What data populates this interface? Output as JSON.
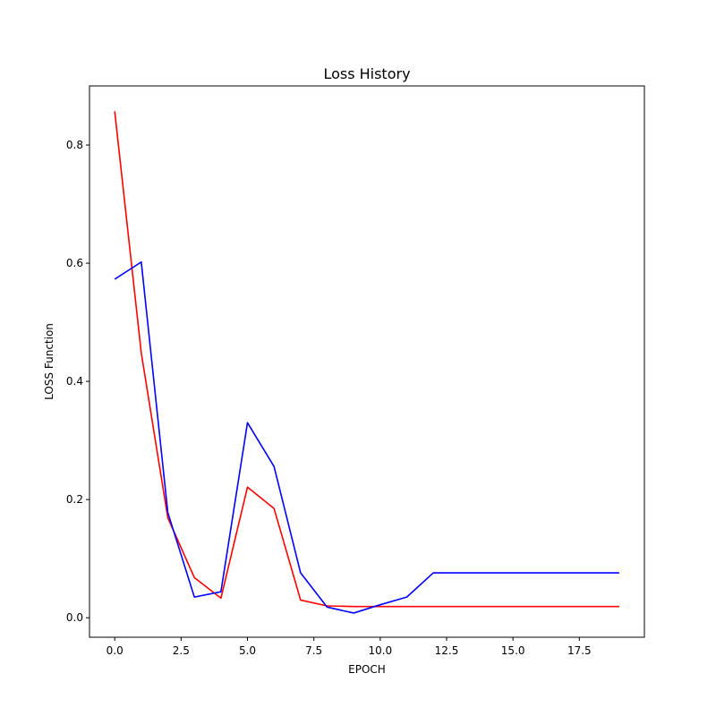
{
  "chart_data": {
    "type": "line",
    "title": "Loss History",
    "xlabel": "EPOCH",
    "ylabel": "LOSS Function",
    "xlim": [
      -0.95,
      19.95
    ],
    "ylim": [
      -0.033,
      0.9
    ],
    "xticks": [
      0.0,
      2.5,
      5.0,
      7.5,
      10.0,
      12.5,
      15.0,
      17.5
    ],
    "xtick_labels": [
      "0.0",
      "2.5",
      "5.0",
      "7.5",
      "10.0",
      "12.5",
      "15.0",
      "17.5"
    ],
    "yticks": [
      0.0,
      0.2,
      0.4,
      0.6,
      0.8
    ],
    "ytick_labels": [
      "0.0",
      "0.2",
      "0.4",
      "0.6",
      "0.8"
    ],
    "grid": false,
    "x": [
      0,
      1,
      2,
      3,
      4,
      5,
      6,
      7,
      8,
      9,
      10,
      11,
      12,
      13,
      14,
      15,
      16,
      17,
      18,
      19
    ],
    "series": [
      {
        "color": "#ff0000",
        "values": [
          0.857,
          0.448,
          0.169,
          0.068,
          0.033,
          0.221,
          0.185,
          0.03,
          0.02,
          0.019,
          0.019,
          0.019,
          0.019,
          0.019,
          0.019,
          0.019,
          0.019,
          0.019,
          0.019,
          0.019
        ]
      },
      {
        "color": "#0000ff",
        "values": [
          0.573,
          0.602,
          0.178,
          0.035,
          0.044,
          0.33,
          0.256,
          0.076,
          0.018,
          0.008,
          0.022,
          0.035,
          0.076,
          0.076,
          0.076,
          0.076,
          0.076,
          0.076,
          0.076,
          0.076
        ]
      }
    ]
  }
}
